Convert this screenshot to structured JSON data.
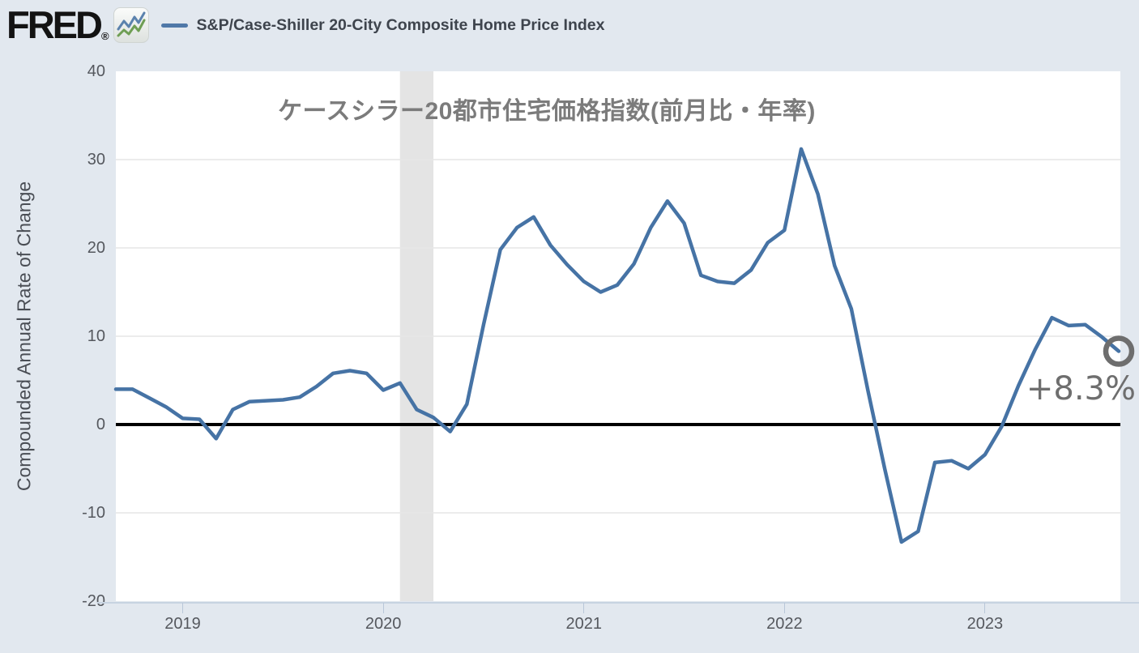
{
  "header": {
    "logo_text": "FRED",
    "logo_reg": "®",
    "series_label": "S&P/Case-Shiller 20-City Composite Home Price Index"
  },
  "chart": {
    "title": "ケースシラー20都市住宅価格指数(前月比・年率)",
    "y_axis_label": "Compounded Annual Rate of Change"
  },
  "chart_data": {
    "type": "line",
    "title": "ケースシラー20都市住宅価格指数(前月比・年率)",
    "series_name": "S&P/Case-Shiller 20-City Composite Home Price Index",
    "ylabel": "Compounded Annual Rate of Change",
    "frequency": "monthly",
    "x": [
      "2018-09",
      "2018-10",
      "2018-11",
      "2018-12",
      "2019-01",
      "2019-02",
      "2019-03",
      "2019-04",
      "2019-05",
      "2019-06",
      "2019-07",
      "2019-08",
      "2019-09",
      "2019-10",
      "2019-11",
      "2019-12",
      "2020-01",
      "2020-02",
      "2020-03",
      "2020-04",
      "2020-05",
      "2020-06",
      "2020-07",
      "2020-08",
      "2020-09",
      "2020-10",
      "2020-11",
      "2020-12",
      "2021-01",
      "2021-02",
      "2021-03",
      "2021-04",
      "2021-05",
      "2021-06",
      "2021-07",
      "2021-08",
      "2021-09",
      "2021-10",
      "2021-11",
      "2021-12",
      "2022-01",
      "2022-02",
      "2022-03",
      "2022-04",
      "2022-05",
      "2022-06",
      "2022-07",
      "2022-08",
      "2022-09",
      "2022-10",
      "2022-11",
      "2022-12",
      "2023-01",
      "2023-02",
      "2023-03",
      "2023-04",
      "2023-05",
      "2023-06",
      "2023-07",
      "2023-08",
      "2023-09"
    ],
    "values": [
      4.0,
      4.0,
      3.0,
      2.0,
      0.7,
      0.6,
      -1.6,
      1.7,
      2.6,
      2.7,
      2.8,
      3.1,
      4.3,
      5.8,
      6.1,
      5.8,
      3.9,
      4.7,
      1.7,
      0.8,
      -0.8,
      2.3,
      11.3,
      19.8,
      22.3,
      23.5,
      20.3,
      18.1,
      16.2,
      15.0,
      15.8,
      18.2,
      22.3,
      25.3,
      22.8,
      16.9,
      16.2,
      16.0,
      17.5,
      20.6,
      22.0,
      31.2,
      26.1,
      18.0,
      13.1,
      3.8,
      -5.0,
      -13.3,
      -12.1,
      -4.3,
      -4.1,
      -5.0,
      -3.4,
      -0.2,
      4.4,
      8.5,
      12.1,
      11.2,
      11.3,
      9.9,
      8.3
    ],
    "x_tick_labels": [
      "2019",
      "2020",
      "2021",
      "2022",
      "2023"
    ],
    "y_ticks": [
      40,
      30,
      20,
      10,
      0,
      -10,
      -20
    ],
    "ylim": [
      -20,
      40
    ],
    "grid": "horizontal",
    "zero_line": true,
    "legend_position": "top",
    "recession_band": {
      "from": "2020-02",
      "to": "2020-04"
    },
    "last_value_label": "+8.3%",
    "colors": {
      "line": "#4673a5",
      "background": "#e2e8ef",
      "plot_background": "#ffffff",
      "grid": "#e6e6e6",
      "zero_line": "#000000",
      "recession_band": "#e4e4e4",
      "marker": "#6e6e6e",
      "title": "#7b7b7b",
      "axis_text": "#55585e"
    }
  }
}
